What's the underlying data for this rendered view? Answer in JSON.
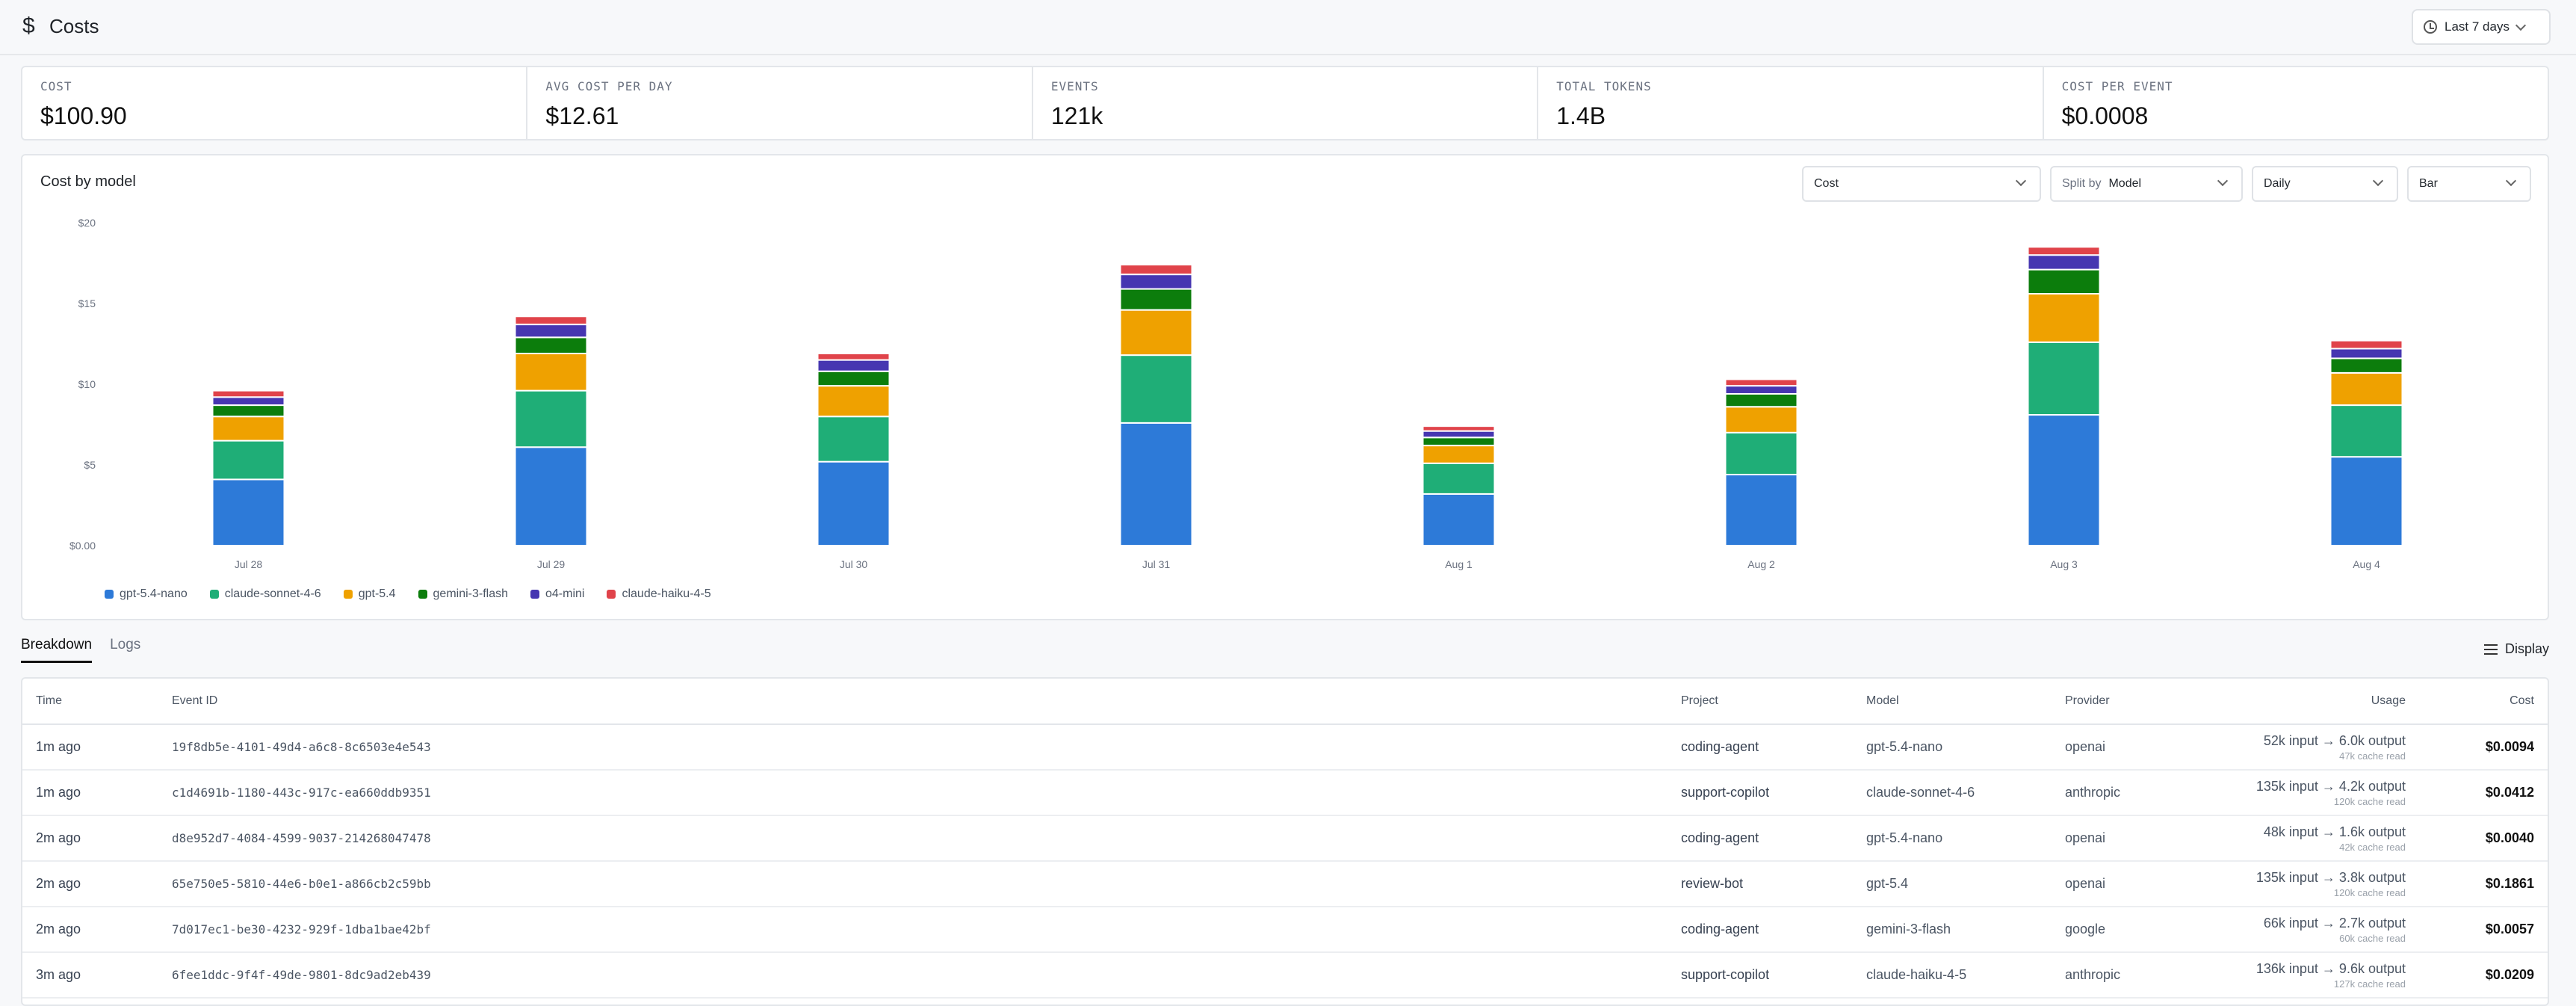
{
  "header": {
    "title": "Costs",
    "range_label": "Last 7 days"
  },
  "stats": [
    {
      "label": "COST",
      "value": "$100.90"
    },
    {
      "label": "AVG COST PER DAY",
      "value": "$12.61"
    },
    {
      "label": "EVENTS",
      "value": "121k"
    },
    {
      "label": "TOTAL TOKENS",
      "value": "1.4B"
    },
    {
      "label": "COST PER EVENT",
      "value": "$0.0008"
    }
  ],
  "chart_card": {
    "title": "Cost by model",
    "controls": {
      "metric": "Cost",
      "split_prefix": "Split by",
      "split_value": "Model",
      "interval": "Daily",
      "chart_type": "Bar"
    }
  },
  "chart_data": {
    "type": "bar",
    "stacked": true,
    "categories": [
      "Jul 28",
      "Jul 29",
      "Jul 30",
      "Jul 31",
      "Aug 1",
      "Aug 2",
      "Aug 3",
      "Aug 4"
    ],
    "ylim": [
      0,
      20
    ],
    "yticks": [
      {
        "value": 0,
        "label": "$0.00"
      },
      {
        "value": 5,
        "label": "$5"
      },
      {
        "value": 10,
        "label": "$10"
      },
      {
        "value": 15,
        "label": "$15"
      },
      {
        "value": 20,
        "label": "$20"
      }
    ],
    "series": [
      {
        "name": "gpt-5.4-nano",
        "color": "#2d7ad8",
        "values": [
          4.1,
          6.1,
          5.2,
          7.6,
          3.2,
          4.4,
          8.1,
          5.5
        ]
      },
      {
        "name": "claude-sonnet-4-6",
        "color": "#1fae77",
        "values": [
          2.4,
          3.5,
          2.8,
          4.2,
          1.9,
          2.6,
          4.5,
          3.2
        ]
      },
      {
        "name": "gpt-5.4",
        "color": "#efa100",
        "values": [
          1.5,
          2.3,
          1.9,
          2.8,
          1.1,
          1.6,
          3.0,
          2.0
        ]
      },
      {
        "name": "gemini-3-flash",
        "color": "#0c7d0c",
        "values": [
          0.7,
          1.0,
          0.9,
          1.3,
          0.5,
          0.8,
          1.5,
          0.9
        ]
      },
      {
        "name": "o4-mini",
        "color": "#4636b1",
        "values": [
          0.5,
          0.8,
          0.7,
          0.9,
          0.4,
          0.5,
          0.9,
          0.6
        ]
      },
      {
        "name": "claude-haiku-4-5",
        "color": "#e0434a",
        "values": [
          0.4,
          0.5,
          0.4,
          0.6,
          0.3,
          0.4,
          0.5,
          0.5
        ]
      }
    ],
    "grid": false,
    "legend_position": "bottom-left"
  },
  "tabs": [
    {
      "label": "Breakdown",
      "active": true
    },
    {
      "label": "Logs",
      "active": false
    }
  ],
  "display_label": "Display",
  "table": {
    "columns": {
      "time": "Time",
      "event": "Event ID",
      "project": "Project",
      "model": "Model",
      "provider": "Provider",
      "usage": "Usage",
      "cost": "Cost"
    },
    "rows": [
      {
        "time": "1m ago",
        "event": "19f8db5e-4101-49d4-a6c8-8c6503e4e543",
        "project": "coding-agent",
        "model": "gpt-5.4-nano",
        "provider": "openai",
        "usage": "52k input → 6.0k output",
        "cache": "47k cache read",
        "cost": "$0.0094"
      },
      {
        "time": "1m ago",
        "event": "c1d4691b-1180-443c-917c-ea660ddb9351",
        "project": "support-copilot",
        "model": "claude-sonnet-4-6",
        "provider": "anthropic",
        "usage": "135k input → 4.2k output",
        "cache": "120k cache read",
        "cost": "$0.0412"
      },
      {
        "time": "2m ago",
        "event": "d8e952d7-4084-4599-9037-214268047478",
        "project": "coding-agent",
        "model": "gpt-5.4-nano",
        "provider": "openai",
        "usage": "48k input → 1.6k output",
        "cache": "42k cache read",
        "cost": "$0.0040"
      },
      {
        "time": "2m ago",
        "event": "65e750e5-5810-44e6-b0e1-a866cb2c59bb",
        "project": "review-bot",
        "model": "gpt-5.4",
        "provider": "openai",
        "usage": "135k input → 3.8k output",
        "cache": "120k cache read",
        "cost": "$0.1861"
      },
      {
        "time": "2m ago",
        "event": "7d017ec1-be30-4232-929f-1dba1bae42bf",
        "project": "coding-agent",
        "model": "gemini-3-flash",
        "provider": "google",
        "usage": "66k input → 2.7k output",
        "cache": "60k cache read",
        "cost": "$0.0057"
      },
      {
        "time": "3m ago",
        "event": "6fee1ddc-9f4f-49de-9801-8dc9ad2eb439",
        "project": "support-copilot",
        "model": "claude-haiku-4-5",
        "provider": "anthropic",
        "usage": "136k input → 9.6k output",
        "cache": "127k cache read",
        "cost": "$0.0209"
      }
    ]
  }
}
